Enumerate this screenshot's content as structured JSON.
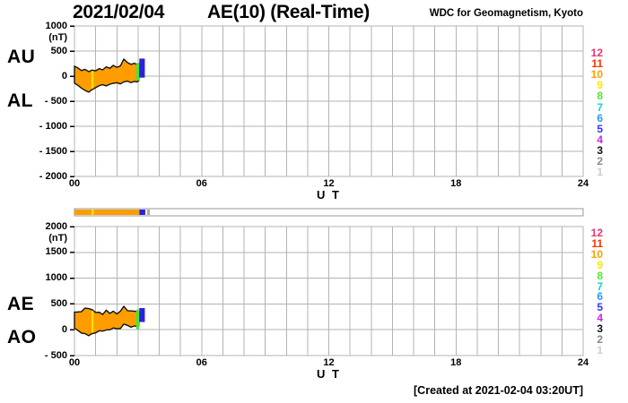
{
  "header": {
    "date": "2021/02/04",
    "title": "AE(10) (Real-Time)",
    "credit": "WDC for Geomagnetism, Kyoto"
  },
  "footer": {
    "created": "[Created at 2021-02-04 03:20UT]"
  },
  "legend": {
    "station_numbers": [
      {
        "label": "12",
        "color": "#e8326e"
      },
      {
        "label": "11",
        "color": "#ff3300"
      },
      {
        "label": "10",
        "color": "#ff9d00"
      },
      {
        "label": "9",
        "color": "#ffe600"
      },
      {
        "label": "8",
        "color": "#55e633"
      },
      {
        "label": "7",
        "color": "#00ddcc"
      },
      {
        "label": "6",
        "color": "#2299ff"
      },
      {
        "label": "5",
        "color": "#3333ff"
      },
      {
        "label": "4",
        "color": "#cc22ee"
      },
      {
        "label": "3",
        "color": "#111111"
      },
      {
        "label": "2",
        "color": "#888888"
      },
      {
        "label": "1",
        "color": "#cccccc"
      }
    ]
  },
  "chart_data": [
    {
      "type": "area",
      "name": "AU-AL-panel",
      "left_labels": [
        "AU",
        "AL"
      ],
      "unit": "(nT)",
      "ylim": [
        -2000,
        1000
      ],
      "yticks": [
        1000,
        500,
        0,
        -500,
        -1000,
        -1500,
        -2000
      ],
      "ytick_labels": [
        "1000",
        "500",
        "0",
        "- 500",
        "- 1000",
        "- 1500",
        "- 2000"
      ],
      "xlim": [
        0,
        24
      ],
      "xticks": [
        0,
        6,
        12,
        18,
        24
      ],
      "xtick_labels": [
        "00",
        "06",
        "12",
        "18",
        "24"
      ],
      "xlabel": "U T",
      "grid": true,
      "band_fill": "#ff9d00",
      "outline_color": "#111111",
      "x_hours": [
        0,
        0.17,
        0.33,
        0.5,
        0.67,
        0.83,
        1.0,
        1.17,
        1.33,
        1.5,
        1.67,
        1.83,
        2.0,
        2.17,
        2.33,
        2.5,
        2.67,
        2.83,
        2.95,
        3.04
      ],
      "series": [
        {
          "name": "AU",
          "values": [
            200,
            160,
            110,
            135,
            90,
            120,
            105,
            150,
            125,
            185,
            155,
            215,
            175,
            205,
            340,
            270,
            235,
            255,
            235,
            250
          ]
        },
        {
          "name": "AL",
          "values": [
            -140,
            -185,
            -240,
            -285,
            -320,
            -270,
            -230,
            -190,
            -170,
            -195,
            -160,
            -145,
            -130,
            -155,
            -115,
            -100,
            -130,
            -105,
            -115,
            -90
          ]
        }
      ],
      "marks": {
        "yellow_line_hour": 0.85,
        "yellow_color": "#ffe600",
        "end_bars": [
          {
            "from": 2.92,
            "to": 3.06,
            "hi": 260,
            "lo": -90,
            "color": "#44e63c"
          },
          {
            "from": 3.06,
            "to": 3.32,
            "hi": 350,
            "lo": -30,
            "color": "#2a22d9"
          }
        ]
      }
    },
    {
      "type": "area",
      "name": "AE-AO-panel",
      "left_labels": [
        "AE",
        "AO"
      ],
      "unit": "(nT)",
      "ylim": [
        -500,
        2000
      ],
      "yticks": [
        2000,
        1500,
        1000,
        500,
        0,
        -500
      ],
      "ytick_labels": [
        "2000",
        "1500",
        "1000",
        "500",
        "0",
        "- 500"
      ],
      "xlim": [
        0,
        24
      ],
      "xticks": [
        0,
        6,
        12,
        18,
        24
      ],
      "xtick_labels": [
        "00",
        "06",
        "12",
        "18",
        "24"
      ],
      "xlabel": "U T",
      "grid": true,
      "band_fill": "#ff9d00",
      "outline_color": "#111111",
      "x_hours": [
        0,
        0.17,
        0.33,
        0.5,
        0.67,
        0.83,
        1.0,
        1.17,
        1.33,
        1.5,
        1.67,
        1.83,
        2.0,
        2.17,
        2.33,
        2.5,
        2.67,
        2.83,
        2.95,
        3.04
      ],
      "series": [
        {
          "name": "AE",
          "values": [
            340,
            345,
            350,
            420,
            410,
            390,
            335,
            340,
            295,
            380,
            315,
            360,
            305,
            360,
            455,
            370,
            365,
            360,
            350,
            340
          ]
        },
        {
          "name": "AO",
          "values": [
            30,
            -15,
            -65,
            -75,
            -115,
            -75,
            -60,
            -20,
            -25,
            -5,
            0,
            35,
            20,
            25,
            110,
            85,
            50,
            75,
            60,
            80
          ]
        }
      ],
      "marks": {
        "yellow_line_hour": 0.85,
        "yellow_color": "#ffe600",
        "end_bars": [
          {
            "from": 2.92,
            "to": 3.06,
            "hi": 390,
            "lo": 10,
            "color": "#44e63c"
          },
          {
            "from": 3.06,
            "to": 3.32,
            "hi": 420,
            "lo": 150,
            "color": "#2a22d9"
          }
        ]
      }
    },
    {
      "type": "bar",
      "name": "station-count-timeline",
      "xlim": [
        0,
        24
      ],
      "segments": [
        {
          "from": 0,
          "to": 0.82,
          "color": "#ff9d00"
        },
        {
          "from": 0.82,
          "to": 0.9,
          "color": "#ffe600"
        },
        {
          "from": 0.9,
          "to": 3.06,
          "color": "#ff9d00"
        },
        {
          "from": 3.06,
          "to": 3.34,
          "color": "#2a22d9"
        },
        {
          "from": 3.42,
          "to": 3.56,
          "color": "#aaaaaa"
        }
      ]
    }
  ]
}
